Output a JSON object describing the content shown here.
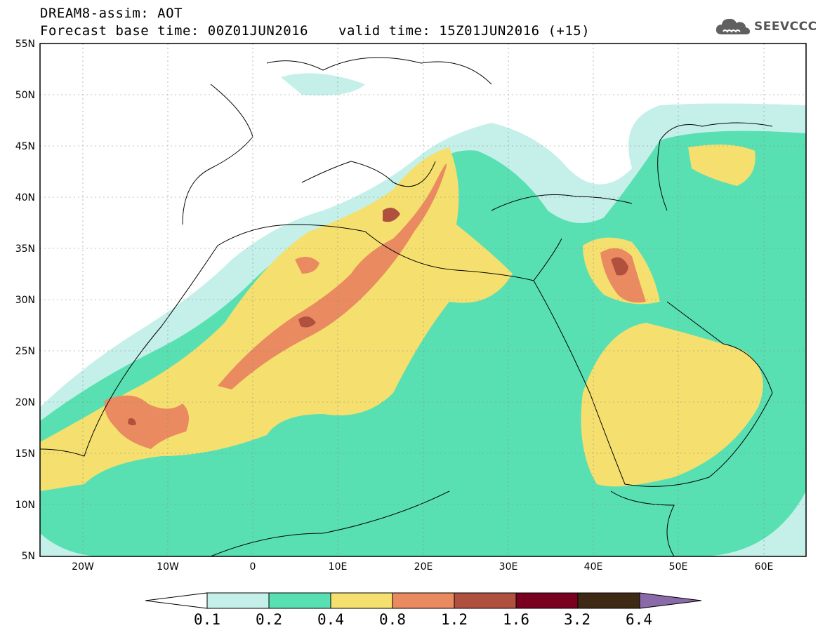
{
  "header": {
    "line1": "DREAM8-assim: AOT",
    "base_time": "Forecast base time: 00Z01JUN2016",
    "valid_time": "valid time: 15Z01JUN2016 (+15)"
  },
  "logo": {
    "text": "SEEVCCC",
    "icon": "cloud-icon"
  },
  "map": {
    "lat_labels": [
      "55N",
      "50N",
      "45N",
      "40N",
      "35N",
      "30N",
      "25N",
      "20N",
      "15N",
      "10N",
      "5N"
    ],
    "lon_labels": [
      "20W",
      "10W",
      "0",
      "10E",
      "20E",
      "30E",
      "40E",
      "50E",
      "60E"
    ],
    "region": "North Africa, Mediterranean and Middle East"
  },
  "colorbar": {
    "labels": [
      "0.1",
      "0.2",
      "0.4",
      "0.8",
      "1.2",
      "1.6",
      "3.2",
      "6.4"
    ],
    "colors": [
      "#ffffff",
      "#c4f0e9",
      "#58e0b3",
      "#f5e06f",
      "#ea8a60",
      "#b0503f",
      "#7a0020",
      "#3e2a14",
      "#8a6aa8"
    ]
  },
  "palette": {
    "c01": "#c4f0e9",
    "c02": "#58e0b3",
    "c04": "#f5e06f",
    "c08": "#ea8a60",
    "c12": "#b0503f"
  }
}
